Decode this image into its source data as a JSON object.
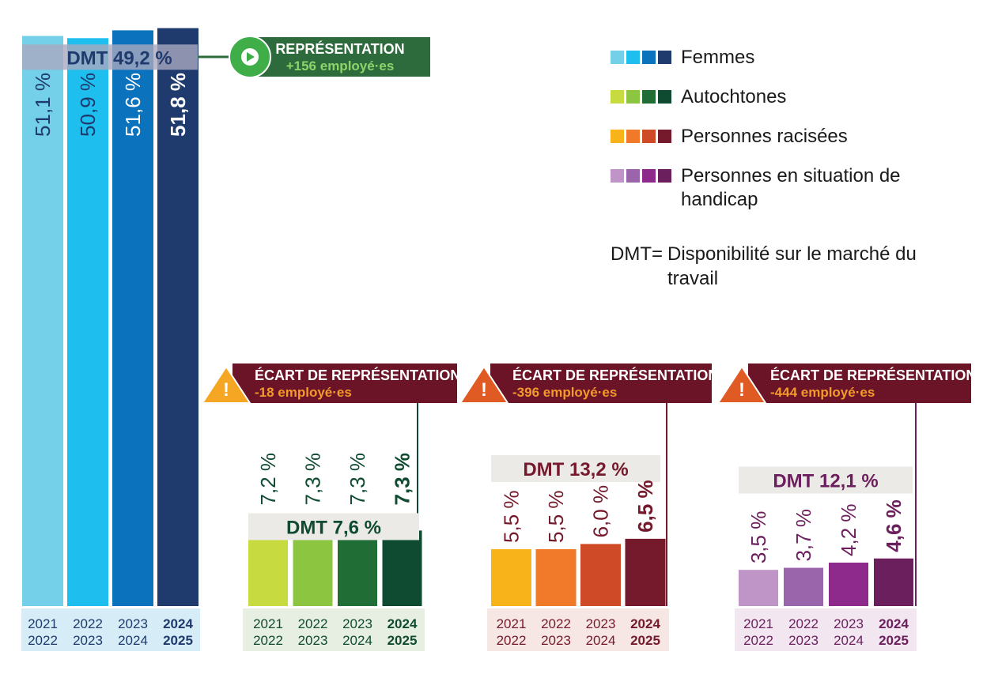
{
  "chart_data": [
    {
      "type": "bar",
      "group": "Femmes",
      "categories": [
        "2021\n2022",
        "2022\n2023",
        "2023\n2024",
        "2024\n2025"
      ],
      "values": [
        51.1,
        50.9,
        51.6,
        51.8
      ],
      "value_labels": [
        "51,1 %",
        "50,9 %",
        "51,6 %",
        "51,8 %"
      ],
      "dmt": 49.2,
      "dmt_label": "DMT 49,2 %",
      "callout_title": "REPRÉSENTATION",
      "callout_sub": "+156 employé·es",
      "callout_kind": "representation",
      "colors": [
        "#74cfe8",
        "#1ebfef",
        "#0b72bd",
        "#1f3b6e"
      ]
    },
    {
      "type": "bar",
      "group": "Autochtones",
      "categories": [
        "2021\n2022",
        "2022\n2023",
        "2023\n2024",
        "2024\n2025"
      ],
      "values": [
        7.2,
        7.3,
        7.3,
        7.3
      ],
      "value_labels": [
        "7,2 %",
        "7,3 %",
        "7,3 %",
        "7,3 %"
      ],
      "dmt": 7.6,
      "dmt_label": "DMT 7,6 %",
      "callout_title": "ÉCART DE REPRÉSENTATION",
      "callout_sub": "-18 employé·es",
      "callout_kind": "ecart",
      "colors": [
        "#c7da3f",
        "#8cc640",
        "#216d36",
        "#0f4b30"
      ]
    },
    {
      "type": "bar",
      "group": "Personnes racisées",
      "categories": [
        "2021\n2022",
        "2022\n2023",
        "2023\n2024",
        "2024\n2025"
      ],
      "values": [
        5.5,
        5.5,
        6.0,
        6.5
      ],
      "value_labels": [
        "5,5 %",
        "5,5 %",
        "6,0 %",
        "6,5 %"
      ],
      "dmt": 13.2,
      "dmt_label": "DMT 13,2 %",
      "callout_title": "ÉCART DE REPRÉSENTATION",
      "callout_sub": "-396 employé·es",
      "callout_kind": "ecart",
      "colors": [
        "#f9b31a",
        "#f17a2a",
        "#cf4a27",
        "#741a2c"
      ]
    },
    {
      "type": "bar",
      "group": "Personnes en situation de handicap",
      "categories": [
        "2021\n2022",
        "2022\n2023",
        "2023\n2024",
        "2024\n2025"
      ],
      "values": [
        3.5,
        3.7,
        4.2,
        4.6
      ],
      "value_labels": [
        "3,5 %",
        "3,7 %",
        "4,2 %",
        "4,6 %"
      ],
      "dmt": 12.1,
      "dmt_label": "DMT 12,1 %",
      "callout_title": "ÉCART DE REPRÉSENTATION",
      "callout_sub": "-444 employé·es",
      "callout_kind": "ecart",
      "colors": [
        "#bf94c6",
        "#9b65ac",
        "#8e2a8b",
        "#6c1f5d"
      ]
    }
  ],
  "legend": [
    {
      "label": "Femmes",
      "colors": [
        "#74cfe8",
        "#1ebfef",
        "#0b72bd",
        "#1f3b6e"
      ]
    },
    {
      "label": "Autochtones",
      "colors": [
        "#c7da3f",
        "#8cc640",
        "#216d36",
        "#0f4b30"
      ]
    },
    {
      "label": "Personnes racisées",
      "colors": [
        "#f9b31a",
        "#f17a2a",
        "#cf4a27",
        "#741a2c"
      ]
    },
    {
      "label": "Personnes en situation de handicap",
      "colors": [
        "#bf94c6",
        "#9b65ac",
        "#8e2a8b",
        "#6c1f5d"
      ]
    }
  ],
  "dmt_definition": {
    "term": "DMT=",
    "text": "Disponibilité sur le marché du travail"
  },
  "style_colors": {
    "femmes_text": "#1f3b6e",
    "autochtones_text": "#0f4b30",
    "racisees_text": "#741a2c",
    "handicap_text": "#6c1f5d",
    "callout_ecart_bg": "#6b1327",
    "callout_ecart_sub": "#f39a2b",
    "callout_rep_bg": "#2e6b3c",
    "callout_rep_sub": "#8ed46a",
    "play_green": "#3fae49",
    "dmt_band": "#eceae6",
    "femmes_band": "#a9a9bf"
  }
}
